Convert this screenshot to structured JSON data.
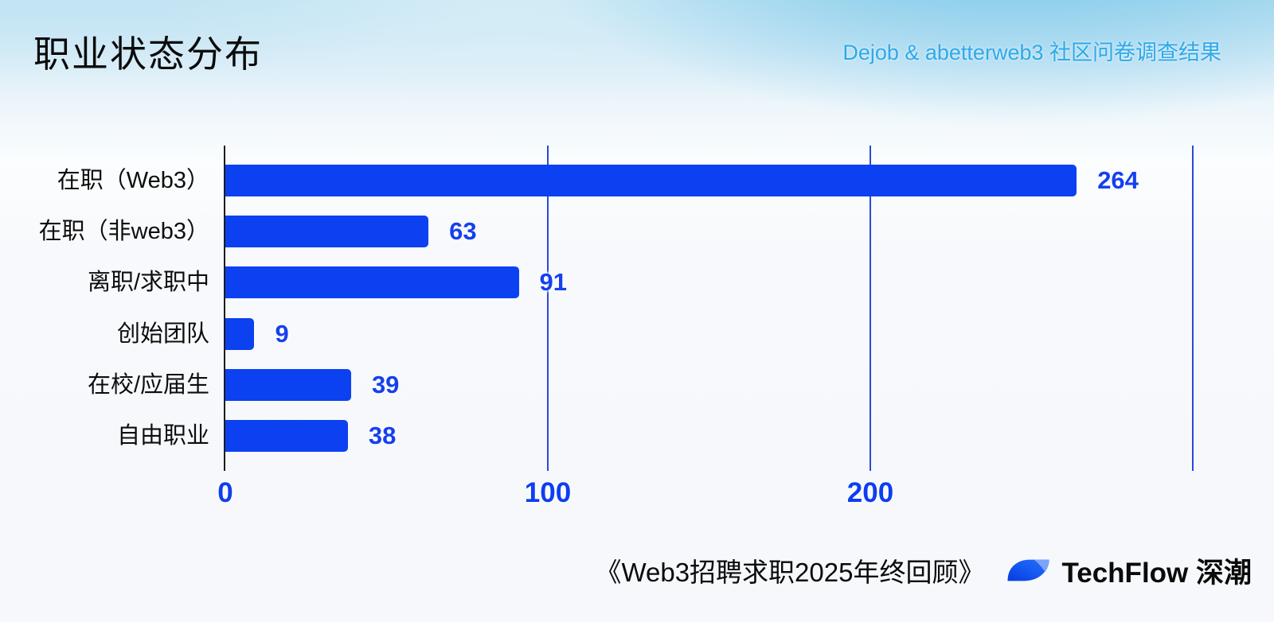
{
  "header": {
    "title": "职业状态分布",
    "subtitle": "Dejob & abetterweb3 社区问卷调查结果",
    "subtitle_color": "#2ea9e9"
  },
  "chart_data": {
    "type": "bar",
    "orientation": "horizontal",
    "title": "职业状态分布",
    "categories": [
      "在职（Web3）",
      "在职（非web3）",
      "离职/求职中",
      "创始团队",
      "在校/应届生",
      "自由职业"
    ],
    "values": [
      264,
      63,
      91,
      9,
      39,
      38
    ],
    "value_labels": [
      "264",
      "63",
      "91",
      "9",
      "39",
      "38"
    ],
    "xlim": [
      0,
      300
    ],
    "x_ticks": [
      0,
      100,
      200
    ],
    "gridlines": [
      100,
      200,
      300
    ],
    "legend": "none",
    "xlabel": "",
    "ylabel": "",
    "bar_color": "#0c41f2",
    "value_label_color": "#1540ef",
    "tick_label_color": "#0d3ef0",
    "gridline_color": "#2c49d4",
    "axis_color": "#1c1c1c"
  },
  "footer": {
    "report_title": "《Web3招聘求职2025年终回顾》",
    "brand_name": "TechFlow 深潮",
    "logo": "techflow-leaf-logo",
    "logo_colors": {
      "main_top": "#2e6ef6",
      "main_bottom": "#0a3be0",
      "light_wedge": "#7aa5fa"
    }
  }
}
